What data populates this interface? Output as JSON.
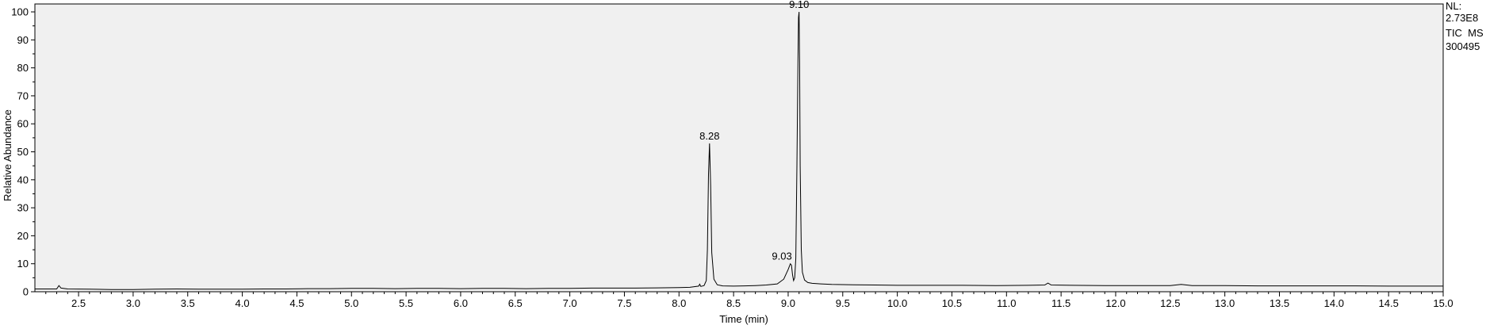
{
  "chart_data": {
    "type": "line",
    "xlabel": "Time (min)",
    "ylabel": "Relative Abundance",
    "xlim": [
      2.1,
      15.0
    ],
    "ylim": [
      0,
      100
    ],
    "x_ticks": [
      "2.5",
      "3.0",
      "3.5",
      "4.0",
      "4.5",
      "5.0",
      "5.5",
      "6.0",
      "6.5",
      "7.0",
      "7.5",
      "8.0",
      "8.5",
      "9.0",
      "9.5",
      "10.0",
      "10.5",
      "11.0",
      "11.5",
      "12.0",
      "12.5",
      "13.0",
      "13.5",
      "14.0",
      "14.5",
      "15.0"
    ],
    "y_ticks": [
      "0",
      "10",
      "20",
      "30",
      "40",
      "50",
      "60",
      "70",
      "80",
      "90",
      "100"
    ],
    "info": [
      "NL:",
      "2.73E8",
      "TIC  MS",
      "300495"
    ],
    "peak_labels": [
      {
        "text": "8.28",
        "x": 8.28,
        "y": 53
      },
      {
        "text": "9.03",
        "x": 9.03,
        "y": 10
      },
      {
        "text": "9.10",
        "x": 9.1,
        "y": 100
      }
    ],
    "series": [
      {
        "x": [
          2.1,
          2.3,
          2.32,
          2.34,
          2.4,
          2.6,
          2.8,
          3.0,
          3.2,
          3.4,
          3.6,
          3.8,
          4.0,
          4.2,
          4.4,
          4.6,
          4.8,
          5.0,
          5.2,
          5.4,
          5.6,
          5.8,
          6.0,
          6.2,
          6.4,
          6.6,
          6.8,
          7.0,
          7.2,
          7.4,
          7.6,
          7.8,
          8.0,
          8.1,
          8.18,
          8.19,
          8.2,
          8.23,
          8.25,
          8.26,
          8.27,
          8.28,
          8.29,
          8.3,
          8.32,
          8.35,
          8.4,
          8.5,
          8.6,
          8.7,
          8.8,
          8.9,
          8.96,
          9.0,
          9.02,
          9.03,
          9.04,
          9.05,
          9.06,
          9.07,
          9.08,
          9.09,
          9.095,
          9.1,
          9.105,
          9.11,
          9.12,
          9.13,
          9.15,
          9.18,
          9.22,
          9.3,
          9.4,
          9.6,
          9.8,
          10.0,
          10.3,
          10.6,
          10.9,
          11.2,
          11.35,
          11.38,
          11.41,
          11.6,
          11.9,
          12.2,
          12.5,
          12.6,
          12.7,
          13.0,
          13.3,
          13.6,
          13.9,
          14.2,
          14.5,
          14.8,
          15.0
        ],
        "values": [
          1.0,
          1.0,
          2.2,
          1.3,
          1.0,
          0.9,
          0.8,
          0.8,
          0.9,
          1.0,
          0.9,
          0.9,
          0.9,
          1.0,
          1.0,
          1.1,
          1.1,
          1.2,
          1.2,
          1.1,
          1.2,
          1.2,
          1.1,
          1.2,
          1.2,
          1.1,
          1.2,
          1.2,
          1.3,
          1.3,
          1.3,
          1.4,
          1.5,
          1.6,
          2.0,
          2.7,
          1.9,
          2.2,
          4.0,
          15.0,
          42.0,
          53.0,
          38.0,
          14.0,
          4.5,
          2.5,
          2.1,
          2.0,
          2.1,
          2.2,
          2.4,
          2.8,
          4.5,
          8.0,
          10.0,
          9.5,
          6.0,
          4.0,
          5.0,
          12.0,
          45.0,
          82.0,
          98.0,
          100.0,
          82.0,
          45.0,
          15.0,
          7.0,
          4.2,
          3.3,
          3.0,
          2.8,
          2.6,
          2.5,
          2.4,
          2.3,
          2.3,
          2.3,
          2.2,
          2.3,
          2.4,
          3.1,
          2.4,
          2.3,
          2.2,
          2.2,
          2.2,
          2.6,
          2.2,
          2.2,
          2.1,
          2.1,
          2.1,
          2.1,
          2.0,
          2.0,
          2.0
        ]
      }
    ]
  }
}
